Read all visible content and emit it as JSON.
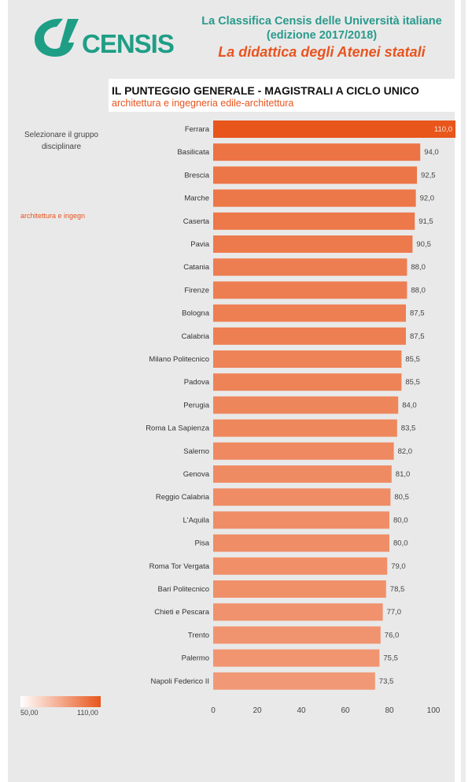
{
  "header": {
    "brand": "CENSIS",
    "line1": "La Classifica Censis delle Università italiane",
    "line2": "(edizione 2017/2018)",
    "line3": "La didattica degli Atenei statali"
  },
  "selector": {
    "label_line1": "Selezionare il gruppo",
    "label_line2": "disciplinare",
    "value": "architettura e ingegn"
  },
  "colorbar": {
    "min": "50,00",
    "max": "110,00"
  },
  "colors": {
    "accent": "#e8541f",
    "teal": "#1f9e86",
    "bar_high": "#e8561c",
    "bar_low": "#ffffff"
  },
  "chart_data": {
    "type": "bar",
    "orientation": "horizontal",
    "title": "IL PUNTEGGIO GENERALE - MAGISTRALI A CICLO UNICO",
    "subtitle": "architettura e ingegneria edile-architettura",
    "categories": [
      "Ferrara",
      "Basilicata",
      "Brescia",
      "Marche",
      "Caserta",
      "Pavia",
      "Catania",
      "Firenze",
      "Bologna",
      "Calabria",
      "Milano Politecnico",
      "Padova",
      "Perugia",
      "Roma La Sapienza",
      "Salerno",
      "Genova",
      "Reggio Calabria",
      "L'Aquila",
      "Pisa",
      "Roma Tor Vergata",
      "Bari Politecnico",
      "Chieti e Pescara",
      "Trento",
      "Palermo",
      "Napoli Federico II"
    ],
    "values": [
      110.0,
      94.0,
      92.5,
      92.0,
      91.5,
      90.5,
      88.0,
      88.0,
      87.5,
      87.5,
      85.5,
      85.5,
      84.0,
      83.5,
      82.0,
      81.0,
      80.5,
      80.0,
      80.0,
      79.0,
      78.5,
      77.0,
      76.0,
      75.5,
      73.5
    ],
    "value_labels": [
      "110,0",
      "94,0",
      "92,5",
      "92,0",
      "91,5",
      "90,5",
      "88,0",
      "88,0",
      "87,5",
      "87,5",
      "85,5",
      "85,5",
      "84,0",
      "83,5",
      "82,0",
      "81,0",
      "80,5",
      "80,0",
      "80,0",
      "79,0",
      "78,5",
      "77,0",
      "76,0",
      "75,5",
      "73,5"
    ],
    "xlim": [
      0,
      110
    ],
    "xticks": [
      0,
      20,
      40,
      60,
      80,
      100
    ],
    "color_scale": [
      50,
      110
    ],
    "xlabel": "",
    "ylabel": ""
  }
}
